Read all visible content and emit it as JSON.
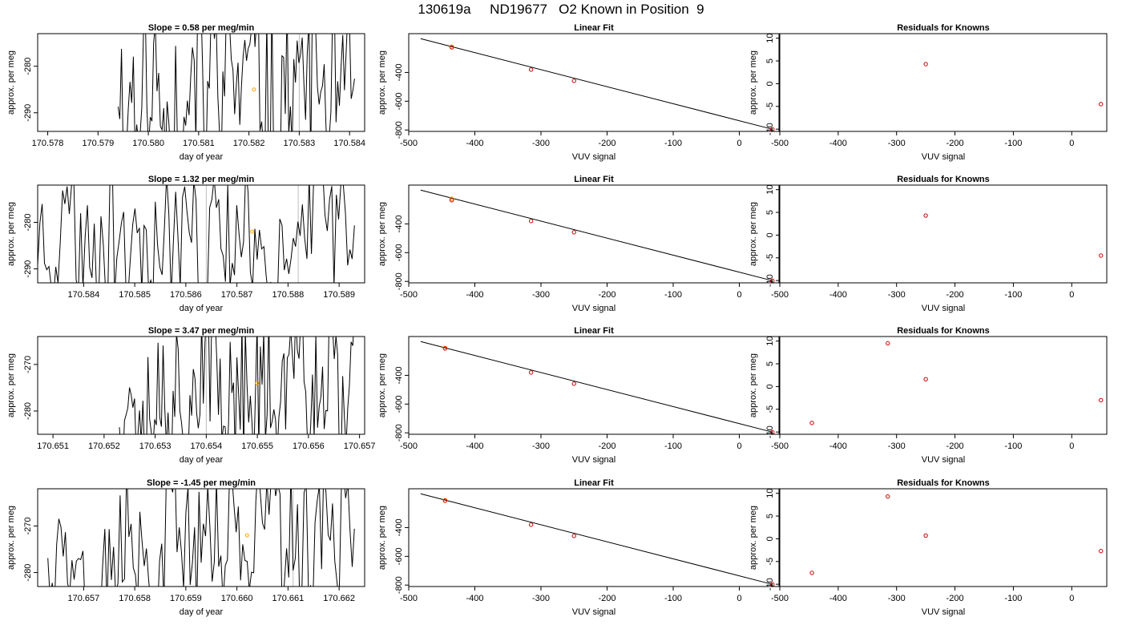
{
  "title": "130619a     ND19677   O2 Known in Position  9",
  "colors": {
    "trace": "#000000",
    "marker_orange": "#FFA500",
    "marker_red": "#CC0000",
    "gridline": "#BEBEBE"
  },
  "chart_data": [
    {
      "type": "line",
      "title": "Slope =  0.58  per meg/min",
      "xlabel": "day of year",
      "ylabel": "approx. per meg",
      "xlim": [
        170.5778,
        170.5843
      ],
      "ylim": [
        -294,
        -273
      ],
      "xticks": [
        170.578,
        170.579,
        170.58,
        170.581,
        170.582,
        170.583,
        170.584
      ],
      "xtick_labels": [
        "170.578",
        "170.579",
        "170.580",
        "170.581",
        "170.582",
        "170.583",
        "170.584"
      ],
      "yticks": [
        -290,
        -280
      ],
      "ytick_labels": [
        "-290",
        "-280"
      ],
      "trace": {
        "x_start": 170.5794,
        "x_end": 170.5841,
        "seed": 11,
        "low": -302,
        "high": -266
      },
      "vlines": [
        170.583
      ],
      "marker": {
        "x": 170.5821,
        "y": -285
      }
    },
    {
      "type": "scatter",
      "title": "Linear Fit",
      "xlabel": "VUV signal",
      "ylabel": "approx. per meg",
      "xlim": [
        -500,
        60
      ],
      "ylim": [
        -810,
        -130
      ],
      "xticks": [
        -500,
        -400,
        -300,
        -200,
        -100,
        0
      ],
      "xtick_labels": [
        "-500",
        "-400",
        "-300",
        "-200",
        "-100",
        "0"
      ],
      "yticks": [
        -800,
        -600,
        -400
      ],
      "ytick_labels": [
        "-800",
        "-600",
        "-400"
      ],
      "fit_line": [
        [
          -482,
          -165
        ],
        [
          50,
          -795
        ]
      ],
      "points": [
        [
          -435,
          -225
        ],
        [
          -315,
          -380
        ],
        [
          -250,
          -458
        ],
        [
          50,
          -795
        ]
      ],
      "highlight": [
        -435,
        -222
      ]
    },
    {
      "type": "scatter",
      "title": "Residuals for Knowns",
      "xlabel": "VUV signal",
      "ylabel": "approx. per meg",
      "xlim": [
        -500,
        60
      ],
      "ylim": [
        -10.5,
        11
      ],
      "xticks": [
        -500,
        -400,
        -300,
        -200,
        -100,
        0
      ],
      "xtick_labels": [
        "-500",
        "-400",
        "-300",
        "-200",
        "-100",
        "0"
      ],
      "yticks": [
        -10,
        -5,
        0,
        5,
        10
      ],
      "ytick_labels": [
        "-10",
        "-5",
        "0",
        "5",
        "10"
      ],
      "points": [
        [
          -250,
          4.3
        ],
        [
          50,
          -4.5
        ]
      ]
    },
    {
      "type": "line",
      "title": "Slope =  1.32  per meg/min",
      "xlabel": "day of year",
      "ylabel": "approx. per meg",
      "xlim": [
        170.5831,
        170.5895
      ],
      "ylim": [
        -293,
        -272
      ],
      "xticks": [
        170.584,
        170.585,
        170.586,
        170.587,
        170.588,
        170.589
      ],
      "xtick_labels": [
        "170.584",
        "170.585",
        "170.586",
        "170.587",
        "170.588",
        "170.589"
      ],
      "yticks": [
        -290,
        -280
      ],
      "ytick_labels": [
        "-290",
        "-280"
      ],
      "trace": {
        "x_start": 170.5831,
        "x_end": 170.5893,
        "seed": 23,
        "low": -296,
        "high": -268
      },
      "vlines": [
        170.5864,
        170.5882
      ],
      "marker": {
        "x": 170.5873,
        "y": -282
      }
    },
    {
      "type": "scatter",
      "title": "Linear Fit",
      "xlabel": "VUV signal",
      "ylabel": "approx. per meg",
      "xlim": [
        -500,
        60
      ],
      "ylim": [
        -810,
        -130
      ],
      "xticks": [
        -500,
        -400,
        -300,
        -200,
        -100,
        0
      ],
      "xtick_labels": [
        "-500",
        "-400",
        "-300",
        "-200",
        "-100",
        "0"
      ],
      "yticks": [
        -800,
        -600,
        -400
      ],
      "ytick_labels": [
        "-800",
        "-600",
        "-400"
      ],
      "fit_line": [
        [
          -482,
          -165
        ],
        [
          50,
          -795
        ]
      ],
      "points": [
        [
          -435,
          -235
        ],
        [
          -315,
          -380
        ],
        [
          -250,
          -458
        ],
        [
          50,
          -795
        ]
      ],
      "highlight": [
        -435,
        -225
      ]
    },
    {
      "type": "scatter",
      "title": "Residuals for Knowns",
      "xlabel": "VUV signal",
      "ylabel": "approx. per meg",
      "xlim": [
        -500,
        60
      ],
      "ylim": [
        -10.5,
        11
      ],
      "xticks": [
        -500,
        -400,
        -300,
        -200,
        -100,
        0
      ],
      "xtick_labels": [
        "-500",
        "-400",
        "-300",
        "-200",
        "-100",
        "0"
      ],
      "yticks": [
        -10,
        -5,
        0,
        5,
        10
      ],
      "ytick_labels": [
        "-10",
        "-5",
        "0",
        "5",
        "10"
      ],
      "points": [
        [
          -250,
          4.3
        ],
        [
          50,
          -4.5
        ]
      ]
    },
    {
      "type": "line",
      "title": "Slope =  3.47  per meg/min",
      "xlabel": "day of year",
      "ylabel": "approx. per meg",
      "xlim": [
        170.6507,
        170.6571
      ],
      "ylim": [
        -285,
        -264
      ],
      "xticks": [
        170.651,
        170.652,
        170.653,
        170.654,
        170.655,
        170.656,
        170.657
      ],
      "xtick_labels": [
        "170.651",
        "170.652",
        "170.653",
        "170.654",
        "170.655",
        "170.656",
        "170.657"
      ],
      "yticks": [
        -280,
        -270
      ],
      "ytick_labels": [
        "-280",
        "-270"
      ],
      "trace": {
        "x_start": 170.6523,
        "x_end": 170.6569,
        "seed": 37,
        "low": -292,
        "high": -258
      },
      "vlines": [
        170.654
      ],
      "marker": {
        "x": 170.655,
        "y": -274
      }
    },
    {
      "type": "scatter",
      "title": "Linear Fit",
      "xlabel": "VUV signal",
      "ylabel": "approx. per meg",
      "xlim": [
        -500,
        60
      ],
      "ylim": [
        -810,
        -130
      ],
      "xticks": [
        -500,
        -400,
        -300,
        -200,
        -100,
        0
      ],
      "xtick_labels": [
        "-500",
        "-400",
        "-300",
        "-200",
        "-100",
        "0"
      ],
      "yticks": [
        -800,
        -600,
        -400
      ],
      "ytick_labels": [
        "-800",
        "-600",
        "-400"
      ],
      "fit_line": [
        [
          -482,
          -165
        ],
        [
          50,
          -795
        ]
      ],
      "points": [
        [
          -445,
          -213
        ],
        [
          -315,
          -380
        ],
        [
          -250,
          -458
        ],
        [
          50,
          -795
        ]
      ],
      "highlight": [
        -445,
        -210
      ]
    },
    {
      "type": "scatter",
      "title": "Residuals for Knowns",
      "xlabel": "VUV signal",
      "ylabel": "approx. per meg",
      "xlim": [
        -500,
        60
      ],
      "ylim": [
        -10.5,
        11
      ],
      "xticks": [
        -500,
        -400,
        -300,
        -200,
        -100,
        0
      ],
      "xtick_labels": [
        "-500",
        "-400",
        "-300",
        "-200",
        "-100",
        "0"
      ],
      "yticks": [
        -10,
        -5,
        0,
        5,
        10
      ],
      "ytick_labels": [
        "-10",
        "-5",
        "0",
        "5",
        "10"
      ],
      "points": [
        [
          -445,
          -8
        ],
        [
          -315,
          9.5
        ],
        [
          -250,
          1.6
        ],
        [
          50,
          -3
        ]
      ]
    },
    {
      "type": "line",
      "title": "Slope =  -1.45  per meg/min",
      "xlabel": "day of year",
      "ylabel": "approx. per meg",
      "xlim": [
        170.6561,
        170.6625
      ],
      "ylim": [
        -283,
        -262
      ],
      "xticks": [
        170.657,
        170.658,
        170.659,
        170.66,
        170.661,
        170.662
      ],
      "xtick_labels": [
        "170.657",
        "170.658",
        "170.659",
        "170.660",
        "170.661",
        "170.662"
      ],
      "yticks": [
        -280,
        -270
      ],
      "ytick_labels": [
        "-280",
        "-270"
      ],
      "trace": {
        "x_start": 170.6563,
        "x_end": 170.6623,
        "seed": 53,
        "low": -289,
        "high": -257
      },
      "vlines": [
        170.6611
      ],
      "marker": {
        "x": 170.6602,
        "y": -272
      }
    },
    {
      "type": "scatter",
      "title": "Linear Fit",
      "xlabel": "VUV signal",
      "ylabel": "approx. per meg",
      "xlim": [
        -500,
        60
      ],
      "ylim": [
        -810,
        -130
      ],
      "xticks": [
        -500,
        -400,
        -300,
        -200,
        -100,
        0
      ],
      "xtick_labels": [
        "-500",
        "-400",
        "-300",
        "-200",
        "-100",
        "0"
      ],
      "yticks": [
        -800,
        -600,
        -400
      ],
      "ytick_labels": [
        "-800",
        "-600",
        "-400"
      ],
      "fit_line": [
        [
          -482,
          -165
        ],
        [
          50,
          -795
        ]
      ],
      "points": [
        [
          -445,
          -213
        ],
        [
          -315,
          -380
        ],
        [
          -250,
          -458
        ],
        [
          50,
          -795
        ]
      ],
      "highlight": [
        -445,
        -210
      ]
    },
    {
      "type": "scatter",
      "title": "Residuals for Knowns",
      "xlabel": "VUV signal",
      "ylabel": "approx. per meg",
      "xlim": [
        -500,
        60
      ],
      "ylim": [
        -10.5,
        11
      ],
      "xticks": [
        -500,
        -400,
        -300,
        -200,
        -100,
        0
      ],
      "xtick_labels": [
        "-500",
        "-400",
        "-300",
        "-200",
        "-100",
        "0"
      ],
      "yticks": [
        -10,
        -5,
        0,
        5,
        10
      ],
      "ytick_labels": [
        "-10",
        "-5",
        "0",
        "5",
        "10"
      ],
      "points": [
        [
          -445,
          -7.5
        ],
        [
          -315,
          9.3
        ],
        [
          -250,
          0.7
        ],
        [
          50,
          -2.7
        ]
      ]
    }
  ]
}
